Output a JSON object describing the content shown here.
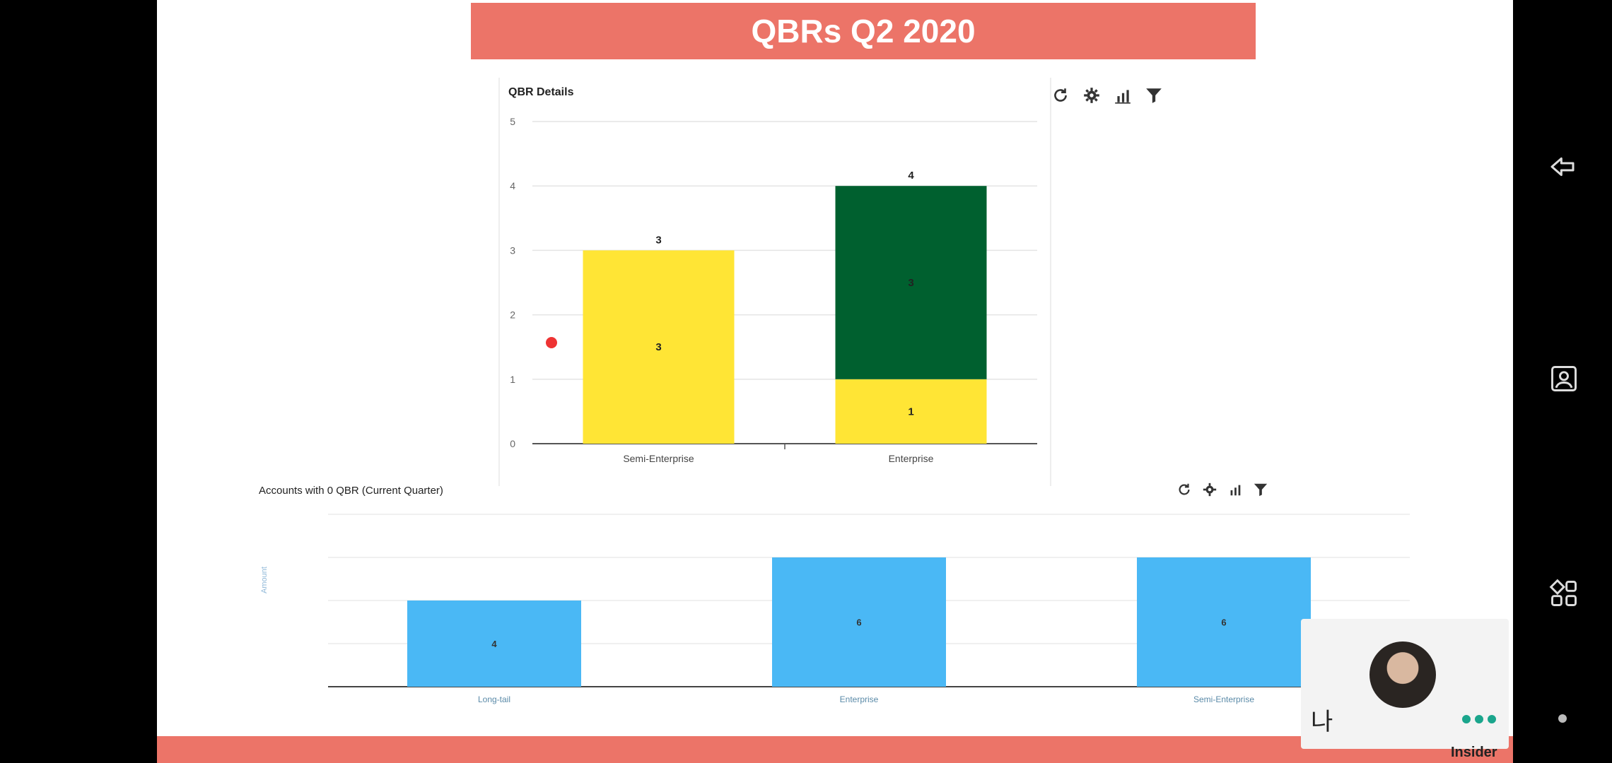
{
  "slide": {
    "title": "QBRs Q2 2020",
    "brand": "Insider"
  },
  "chart1": {
    "title": "QBR Details",
    "toolbar": [
      "refresh-icon",
      "gear-icon",
      "bar-chart-icon",
      "filter-icon"
    ]
  },
  "chart2": {
    "title": "Accounts with 0 QBR (Current Quarter)",
    "ylabel": "Amount",
    "toolbar": [
      "refresh-icon",
      "gear-icon",
      "bar-chart-icon",
      "filter-icon"
    ]
  },
  "video_tile": {
    "label": "나"
  },
  "colors": {
    "banner": "#ec7468",
    "yellow": "#ffe535",
    "green": "#00602f",
    "blue": "#4ab8f5",
    "dots": "#1aa58c"
  },
  "chart_data": [
    {
      "type": "bar",
      "title": "QBR Details",
      "stacked": true,
      "categories": [
        "Semi-Enterprise",
        "Enterprise"
      ],
      "series": [
        {
          "color": "#ffe535",
          "values": [
            3,
            1
          ]
        },
        {
          "color": "#00602f",
          "values": [
            0,
            3
          ]
        }
      ],
      "totals": [
        3,
        4
      ],
      "ylim": [
        0,
        5
      ],
      "yticks": [
        0,
        1,
        2,
        3,
        4,
        5
      ],
      "grid": true
    },
    {
      "type": "bar",
      "title": "Accounts with 0 QBR (Current Quarter)",
      "ylabel": "Amount",
      "categories": [
        "Long-tail",
        "Enterprise",
        "Semi-Enterprise"
      ],
      "values": [
        4,
        6,
        6
      ],
      "color": "#4ab8f5",
      "ylim": [
        0,
        8
      ],
      "grid": true
    }
  ]
}
